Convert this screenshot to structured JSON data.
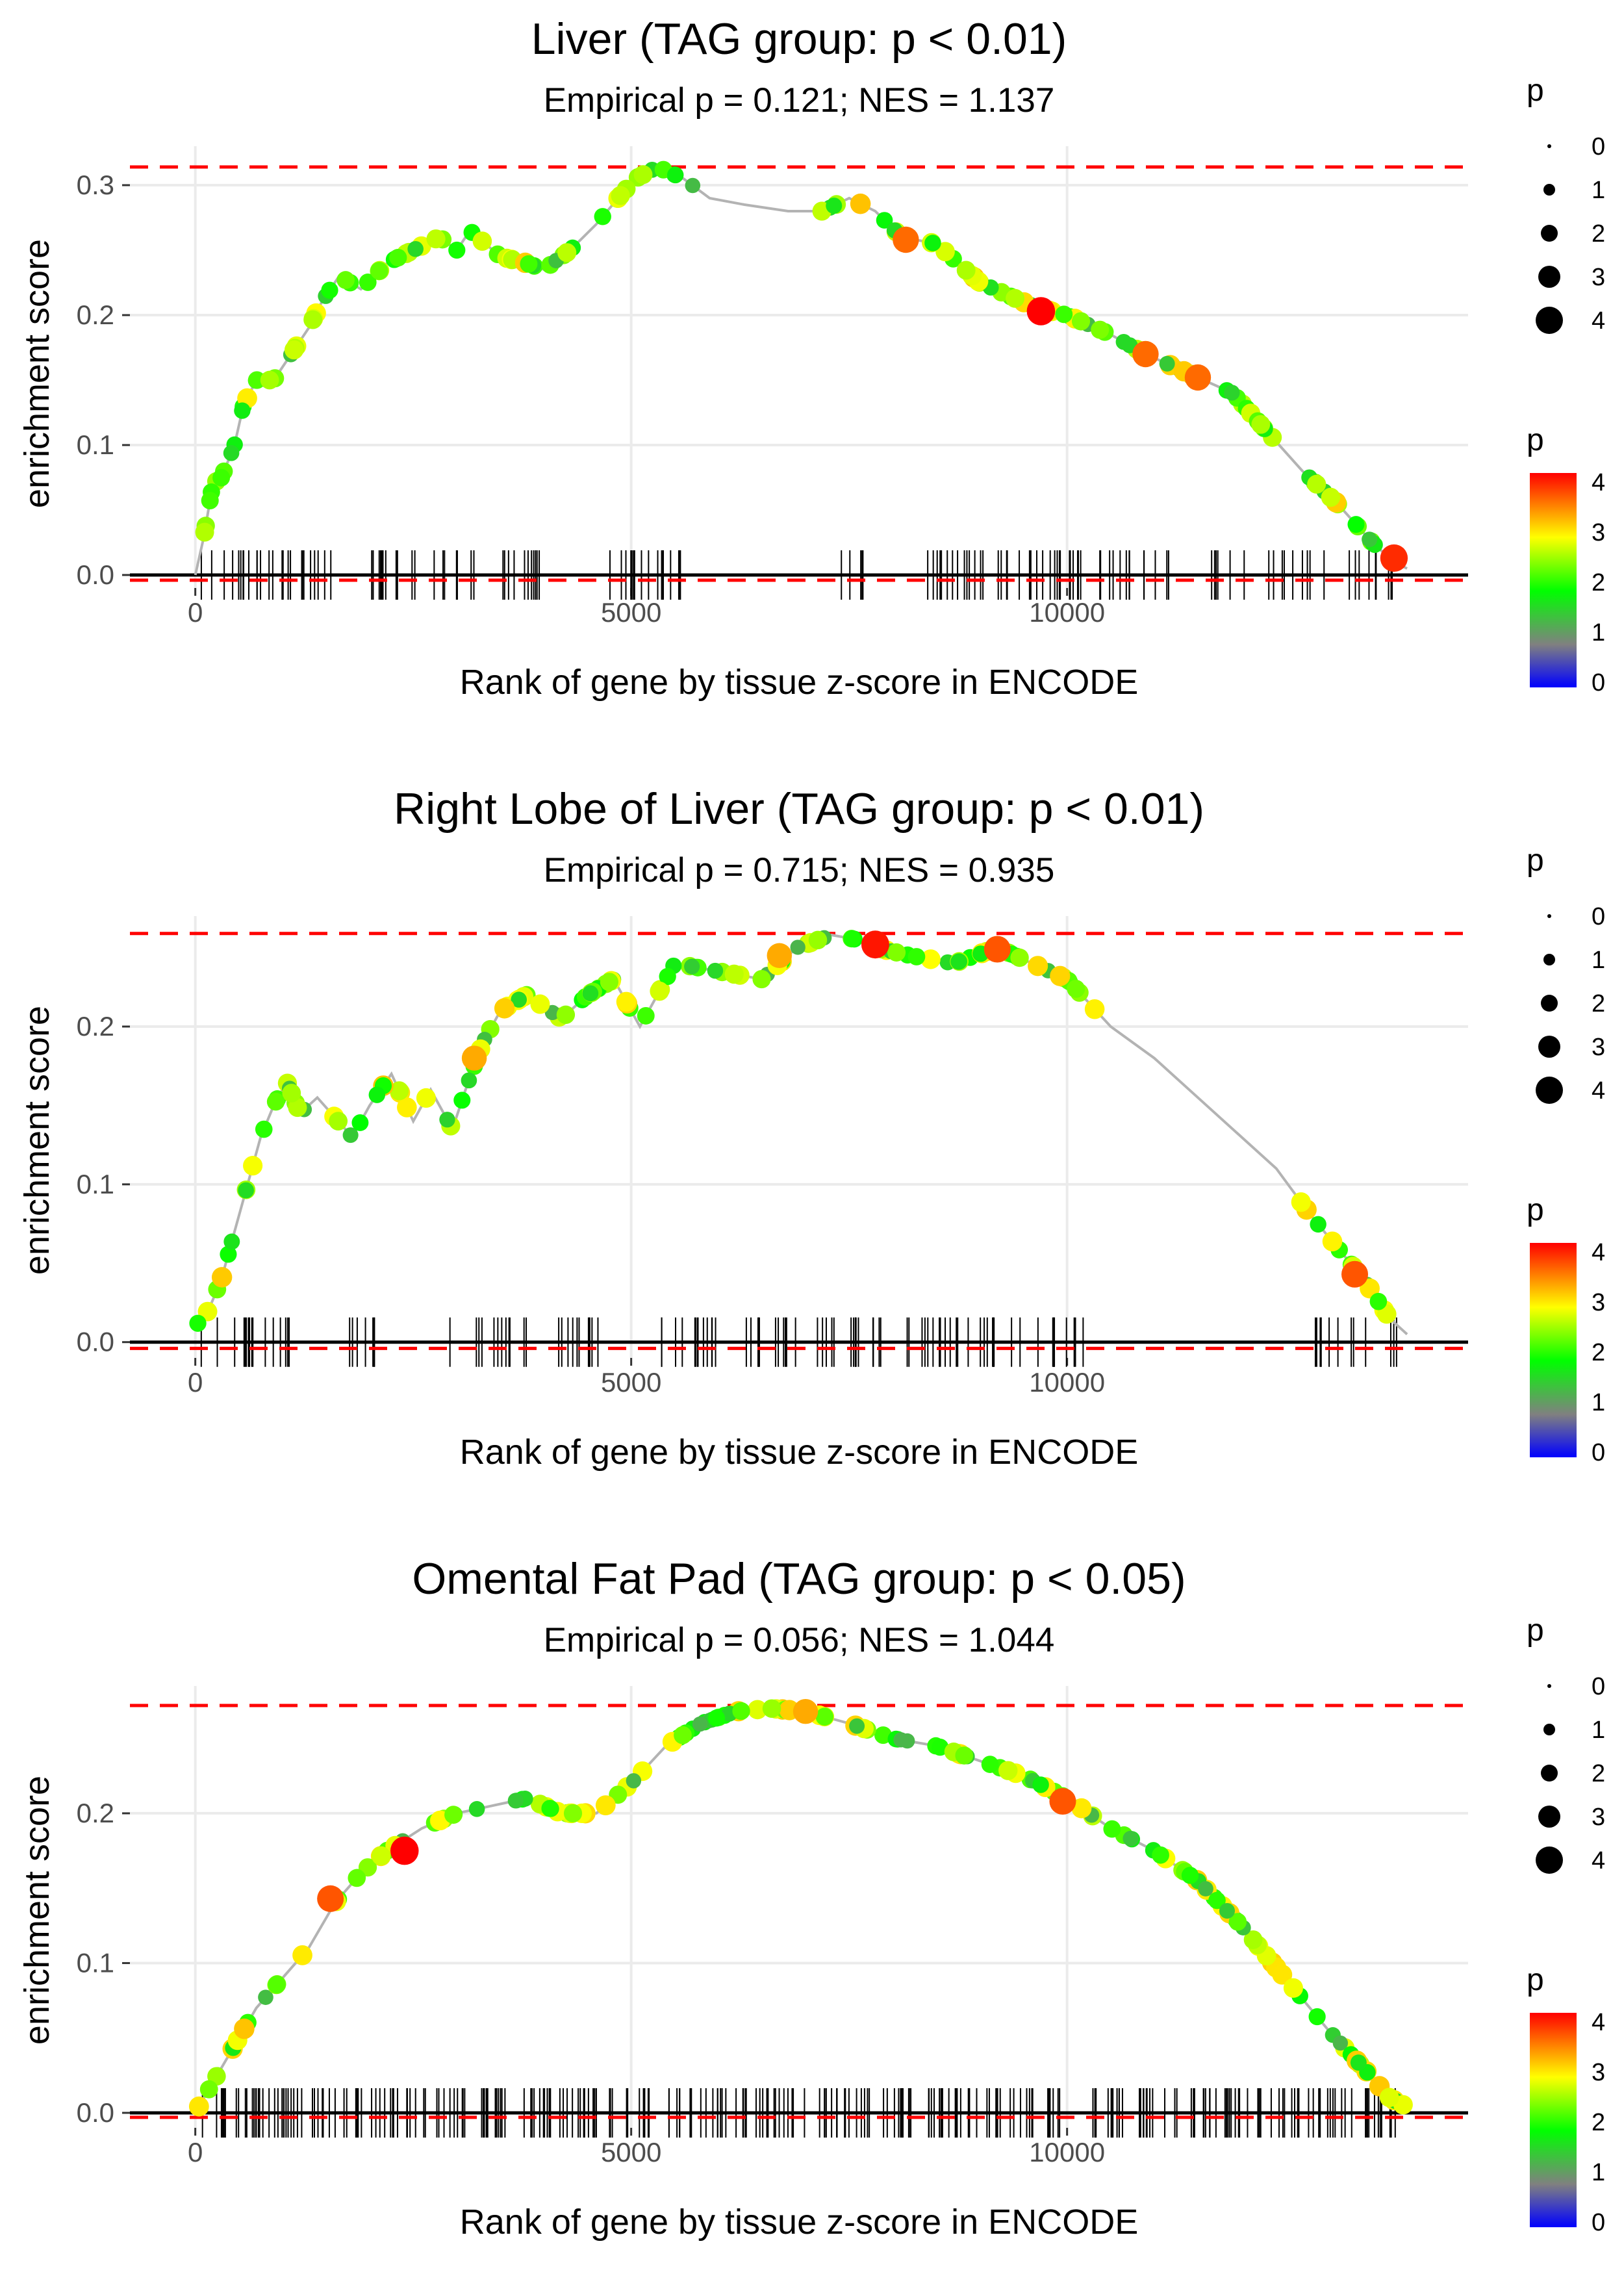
{
  "colors": {
    "threshold_line": "#ff0000",
    "curve_line": "#b3b3b3",
    "gridline": "#ebebeb",
    "axis": "#000000",
    "gradient": [
      "#0000ff",
      "#808080",
      "#00ff00",
      "#ffff00",
      "#ff0000"
    ]
  },
  "chart_data": [
    {
      "type": "line",
      "title": "Liver (TAG group: p < 0.01)",
      "subtitle": "Empirical p = 0.121; NES = 1.137",
      "xlabel": "Rank of gene by tissue z-score in ENCODE",
      "ylabel": "enrichment score",
      "xlim": [
        -750,
        14600
      ],
      "ylim": [
        -0.01,
        0.33
      ],
      "x_ticks": [
        0,
        5000,
        10000
      ],
      "x_tick_labels": [
        "0",
        "5000",
        "10000"
      ],
      "y_ticks": [
        0.0,
        0.1,
        0.2,
        0.3
      ],
      "y_tick_labels": [
        "0.0",
        "0.1",
        "0.2",
        "0.3"
      ],
      "threshold_upper": 0.314,
      "threshold_lower": -0.004,
      "curve": [
        [
          0,
          0.0
        ],
        [
          100,
          0.03
        ],
        [
          200,
          0.07
        ],
        [
          300,
          0.075
        ],
        [
          450,
          0.1
        ],
        [
          550,
          0.13
        ],
        [
          700,
          0.15
        ],
        [
          900,
          0.15
        ],
        [
          1100,
          0.17
        ],
        [
          1300,
          0.19
        ],
        [
          1450,
          0.21
        ],
        [
          1650,
          0.23
        ],
        [
          1900,
          0.22
        ],
        [
          2200,
          0.24
        ],
        [
          2500,
          0.25
        ],
        [
          2800,
          0.26
        ],
        [
          3000,
          0.25
        ],
        [
          3150,
          0.265
        ],
        [
          3500,
          0.245
        ],
        [
          3800,
          0.24
        ],
        [
          4000,
          0.235
        ],
        [
          4300,
          0.25
        ],
        [
          4600,
          0.27
        ],
        [
          4850,
          0.29
        ],
        [
          5050,
          0.305
        ],
        [
          5300,
          0.314
        ],
        [
          5600,
          0.305
        ],
        [
          5900,
          0.29
        ],
        [
          6300,
          0.285
        ],
        [
          6800,
          0.28
        ],
        [
          7200,
          0.28
        ],
        [
          7500,
          0.29
        ],
        [
          7800,
          0.28
        ],
        [
          8100,
          0.26
        ],
        [
          8500,
          0.255
        ],
        [
          9000,
          0.225
        ],
        [
          9500,
          0.21
        ],
        [
          9700,
          0.205
        ],
        [
          10000,
          0.2
        ],
        [
          10500,
          0.185
        ],
        [
          10900,
          0.17
        ],
        [
          11400,
          0.155
        ],
        [
          11900,
          0.14
        ],
        [
          12300,
          0.11
        ],
        [
          12700,
          0.08
        ],
        [
          13100,
          0.055
        ],
        [
          13500,
          0.025
        ],
        [
          13750,
          0.01
        ],
        [
          13900,
          0.005
        ]
      ],
      "highlights": [
        {
          "x": 8150,
          "y": 0.258,
          "p": 3.5
        },
        {
          "x": 9700,
          "y": 0.203,
          "p": 4
        },
        {
          "x": 10900,
          "y": 0.17,
          "p": 3.5
        },
        {
          "x": 11500,
          "y": 0.152,
          "p": 3.5
        },
        {
          "x": 13750,
          "y": 0.013,
          "p": 3.8
        }
      ],
      "ticks_seed": 11,
      "ticks_count": 150,
      "ticks_gaps": [
        [
          1700,
          2000
        ],
        [
          3200,
          3500
        ],
        [
          4200,
          4700
        ],
        [
          5600,
          7300
        ],
        [
          7900,
          8300
        ]
      ],
      "size_legend": {
        "title": "p",
        "labels": [
          "0",
          "1",
          "2",
          "3",
          "4"
        ]
      },
      "color_legend": {
        "title": "p",
        "labels": [
          "4",
          "3",
          "2",
          "1",
          "0"
        ]
      }
    },
    {
      "type": "line",
      "title": "Right Lobe of Liver (TAG group: p < 0.01)",
      "subtitle": "Empirical p = 0.715; NES = 0.935",
      "xlabel": "Rank of gene by tissue z-score in ENCODE",
      "ylabel": "enrichment score",
      "xlim": [
        -750,
        14600
      ],
      "ylim": [
        -0.01,
        0.27
      ],
      "x_ticks": [
        0,
        5000,
        10000
      ],
      "x_tick_labels": [
        "0",
        "5000",
        "10000"
      ],
      "y_ticks": [
        0.0,
        0.1,
        0.2
      ],
      "y_tick_labels": [
        "0.0",
        "0.1",
        "0.2"
      ],
      "threshold_upper": 0.259,
      "threshold_lower": -0.004,
      "curve": [
        [
          0,
          0.01
        ],
        [
          150,
          0.02
        ],
        [
          300,
          0.04
        ],
        [
          450,
          0.07
        ],
        [
          600,
          0.1
        ],
        [
          750,
          0.13
        ],
        [
          900,
          0.15
        ],
        [
          1050,
          0.165
        ],
        [
          1200,
          0.145
        ],
        [
          1400,
          0.155
        ],
        [
          1800,
          0.13
        ],
        [
          2000,
          0.15
        ],
        [
          2250,
          0.17
        ],
        [
          2500,
          0.14
        ],
        [
          2700,
          0.16
        ],
        [
          2950,
          0.135
        ],
        [
          3100,
          0.16
        ],
        [
          3300,
          0.19
        ],
        [
          3500,
          0.21
        ],
        [
          3800,
          0.22
        ],
        [
          4200,
          0.205
        ],
        [
          4500,
          0.22
        ],
        [
          4800,
          0.23
        ],
        [
          5100,
          0.2
        ],
        [
          5500,
          0.24
        ],
        [
          6000,
          0.235
        ],
        [
          6500,
          0.23
        ],
        [
          6900,
          0.25
        ],
        [
          7300,
          0.258
        ],
        [
          7600,
          0.255
        ],
        [
          7800,
          0.25
        ],
        [
          8200,
          0.245
        ],
        [
          8700,
          0.24
        ],
        [
          9200,
          0.25
        ],
        [
          9600,
          0.24
        ],
        [
          10000,
          0.23
        ],
        [
          10500,
          0.2
        ],
        [
          11000,
          0.18
        ],
        [
          11500,
          0.155
        ],
        [
          12000,
          0.13
        ],
        [
          12400,
          0.11
        ],
        [
          12800,
          0.08
        ],
        [
          13100,
          0.06
        ],
        [
          13400,
          0.04
        ],
        [
          13700,
          0.015
        ],
        [
          13900,
          0.005
        ]
      ],
      "highlights": [
        {
          "x": 6700,
          "y": 0.245,
          "p": 3.2
        },
        {
          "x": 7800,
          "y": 0.252,
          "p": 3.9
        },
        {
          "x": 9200,
          "y": 0.249,
          "p": 3.6
        },
        {
          "x": 3200,
          "y": 0.18,
          "p": 3.2
        },
        {
          "x": 13300,
          "y": 0.043,
          "p": 3.6
        }
      ],
      "ticks_seed": 23,
      "ticks_count": 130,
      "ticks_gaps": [
        [
          1100,
          1700
        ],
        [
          2100,
          2400
        ],
        [
          3000,
          3200
        ],
        [
          4900,
          5300
        ],
        [
          10200,
          12800
        ]
      ],
      "size_legend": {
        "title": "p",
        "labels": [
          "0",
          "1",
          "2",
          "3",
          "4"
        ]
      },
      "color_legend": {
        "title": "p",
        "labels": [
          "4",
          "3",
          "2",
          "1",
          "0"
        ]
      }
    },
    {
      "type": "line",
      "title": "Omental Fat Pad (TAG group: p < 0.05)",
      "subtitle": "Empirical p = 0.056; NES = 1.044",
      "xlabel": "Rank of gene by tissue z-score in ENCODE",
      "ylabel": "enrichment score",
      "xlim": [
        -750,
        14600
      ],
      "ylim": [
        -0.01,
        0.285
      ],
      "x_ticks": [
        0,
        5000,
        10000
      ],
      "x_tick_labels": [
        "0",
        "5000",
        "10000"
      ],
      "y_ticks": [
        0.0,
        0.1,
        0.2
      ],
      "y_tick_labels": [
        "0.0",
        "0.1",
        "0.2"
      ],
      "threshold_upper": 0.272,
      "threshold_lower": -0.003,
      "curve": [
        [
          0,
          0.0
        ],
        [
          200,
          0.02
        ],
        [
          400,
          0.04
        ],
        [
          700,
          0.07
        ],
        [
          1000,
          0.09
        ],
        [
          1300,
          0.11
        ],
        [
          1600,
          0.14
        ],
        [
          1900,
          0.16
        ],
        [
          2200,
          0.175
        ],
        [
          2600,
          0.19
        ],
        [
          3000,
          0.2
        ],
        [
          3400,
          0.205
        ],
        [
          3800,
          0.21
        ],
        [
          4200,
          0.2
        ],
        [
          4600,
          0.2
        ],
        [
          5000,
          0.22
        ],
        [
          5400,
          0.245
        ],
        [
          5800,
          0.26
        ],
        [
          6200,
          0.268
        ],
        [
          6600,
          0.27
        ],
        [
          7000,
          0.268
        ],
        [
          7500,
          0.26
        ],
        [
          8000,
          0.25
        ],
        [
          8500,
          0.245
        ],
        [
          9000,
          0.235
        ],
        [
          9500,
          0.225
        ],
        [
          10000,
          0.21
        ],
        [
          10500,
          0.19
        ],
        [
          11000,
          0.175
        ],
        [
          11500,
          0.155
        ],
        [
          12000,
          0.125
        ],
        [
          12500,
          0.09
        ],
        [
          13000,
          0.055
        ],
        [
          13400,
          0.03
        ],
        [
          13700,
          0.01
        ],
        [
          13900,
          0.004
        ]
      ],
      "highlights": [
        {
          "x": 1550,
          "y": 0.143,
          "p": 3.6
        },
        {
          "x": 2400,
          "y": 0.175,
          "p": 4
        },
        {
          "x": 9950,
          "y": 0.208,
          "p": 3.6
        },
        {
          "x": 7000,
          "y": 0.268,
          "p": 3.2
        }
      ],
      "ticks_seed": 37,
      "ticks_count": 300,
      "ticks_gaps": [],
      "size_legend": {
        "title": "p",
        "labels": [
          "0",
          "1",
          "2",
          "3",
          "4"
        ]
      },
      "color_legend": {
        "title": "p",
        "labels": [
          "4",
          "3",
          "2",
          "1",
          "0"
        ]
      }
    }
  ]
}
